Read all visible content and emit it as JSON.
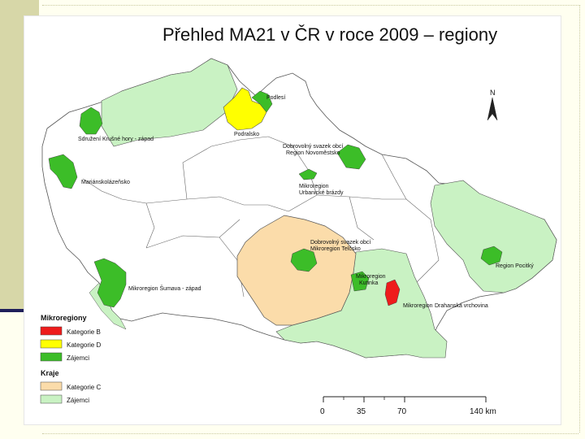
{
  "title": "Přehled MA21 v ČR v roce 2009 – regiony",
  "north_label": "N",
  "colors": {
    "kategorie_b": "#ee1c1c",
    "kategorie_d": "#ffff00",
    "zajemci_micro": "#3cbd28",
    "kategorie_c": "#fbdcaa",
    "zajemci_kraje": "#c9f2c3",
    "border": "#555555"
  },
  "labels": {
    "podlesi": "Podlesí",
    "podralsko": "Podralsko",
    "sdruzeni_krusne_hory": "Sdružení Krušné hory - západ",
    "dobrovolny_novemestsko": "Dobrovolný svazek obcí",
    "dobrovolny_novemestsko_2": "Region Novoměstsko",
    "marianskolazensko": "Mariánskolázeňsko",
    "mikroregion_urbanicke": "Mikroregion",
    "mikroregion_urbanicke_2": "Urbanické brázdy",
    "dobrovolny_svazek_obci": "Dobrovolný svazek obcí",
    "mikroregion_telc": "Mikroregion Telčsko",
    "region_pocitky": "Region Pocitký",
    "mikroregion_sumava": "Mikroregion Šumava - západ",
    "mikroregion_kutinka": "Mikroregion",
    "mikroregion_kutinka_2": "Kutinka",
    "mikroregion_drahanske": "Mikroregion",
    "drahanske_vrchoviny": "Drahanská vrchovina"
  },
  "legend": {
    "group1_title": "Mikroregiony",
    "group1_items": [
      "Kategorie B",
      "Kategorie D",
      "Zájemci"
    ],
    "group2_title": "Kraje",
    "group2_items": [
      "Kategorie C",
      "Zájemci"
    ]
  },
  "scale": {
    "ticks": [
      "0",
      "35",
      "70",
      "140 km"
    ]
  }
}
